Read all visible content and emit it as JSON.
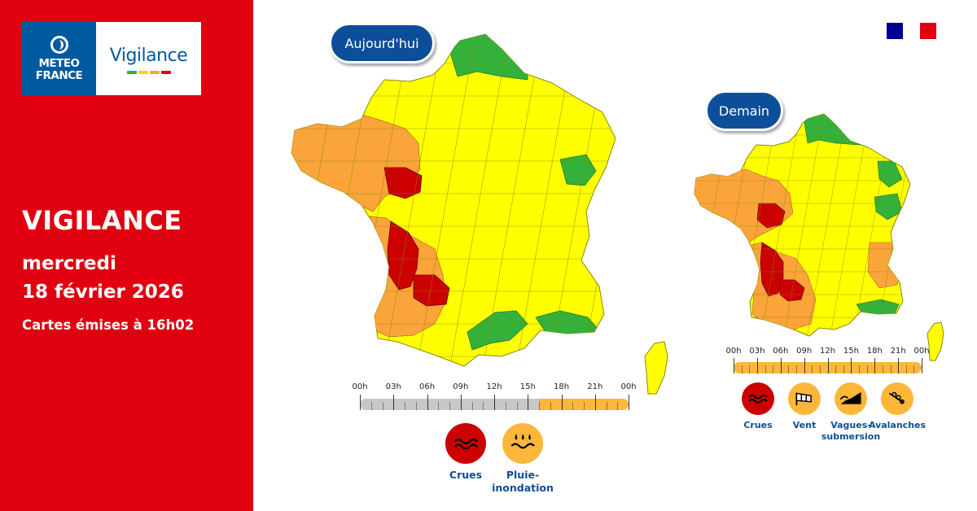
{
  "colors": {
    "red_panel": "#e1000f",
    "navy": "#0d4e98",
    "mf_blue": "#005aa0",
    "level_green": "#33b13a",
    "level_yellow": "#ffff00",
    "level_orange": "#fba43a",
    "level_red": "#cc0000",
    "timeline_grey": "#c8c8c8",
    "timeline_orange": "#fcb73b"
  },
  "brand": {
    "logo_line1": "METEO",
    "logo_line2": "FRANCE",
    "product": "Vigilance",
    "stripe_colors": [
      "#33b13a",
      "#ffd500",
      "#fba43a",
      "#e1000f"
    ]
  },
  "header": {
    "title": "VIGILANCE",
    "day": "mercredi",
    "date": "18 février 2026",
    "issued": "Cartes émises à 16h02"
  },
  "flag": {
    "colors": [
      "#000091",
      "#ffffff",
      "#e1000f"
    ]
  },
  "today": {
    "label": "Aujourd'hui",
    "timeline": {
      "hours": [
        "00h",
        "03h",
        "06h",
        "09h",
        "12h",
        "15h",
        "18h",
        "21h",
        "00h"
      ],
      "segments": [
        {
          "from": 0,
          "to": 16,
          "level": "grey"
        },
        {
          "from": 16,
          "to": 24,
          "level": "orange"
        }
      ]
    },
    "hazards": [
      {
        "label": "Crues",
        "level": "red",
        "icon": "flood-icon"
      },
      {
        "label": "Pluie-\ninondation",
        "level": "orange",
        "icon": "rain-flood-icon"
      }
    ]
  },
  "tomorrow": {
    "label": "Demain",
    "timeline": {
      "hours": [
        "00h",
        "03h",
        "06h",
        "09h",
        "12h",
        "15h",
        "18h",
        "21h",
        "00h"
      ],
      "segments": [
        {
          "from": 0,
          "to": 24,
          "level": "orange"
        }
      ]
    },
    "hazards": [
      {
        "label": "Crues",
        "level": "red",
        "icon": "flood-icon"
      },
      {
        "label": "Vent",
        "level": "orange",
        "icon": "wind-icon"
      },
      {
        "label": "Vagues-\nsubmersion",
        "level": "orange",
        "icon": "wave-icon"
      },
      {
        "label": "Avalanches",
        "level": "orange",
        "icon": "avalanche-icon"
      }
    ]
  },
  "map_levels": {
    "today": {
      "green": "north, east, southeast coast",
      "orange": "brittany, west, southwest",
      "red": "loire, gironde, lot-et-garonne"
    },
    "tomorrow": {
      "green": "north, east",
      "orange": "west, southwest, alps",
      "red": "loire, gironde, lot-et-garonne"
    }
  }
}
